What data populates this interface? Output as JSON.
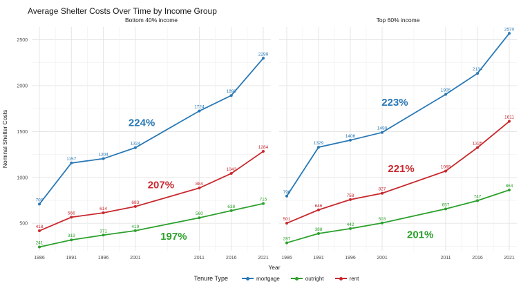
{
  "chart_data": {
    "type": "line",
    "title": "Average Shelter Costs Over Time by Income Group",
    "xlabel": "Year",
    "ylabel": "Nominal Shelter Costs",
    "x": [
      1986,
      1991,
      1996,
      2001,
      2011,
      2016,
      2021
    ],
    "yticks": [
      500,
      1000,
      1500,
      2000,
      2500
    ],
    "ylim": [
      200,
      2640
    ],
    "grid": true,
    "legend_position": "bottom",
    "legend_title": "Tenure Type",
    "colors": {
      "mortgage": "#2878b5",
      "outright": "#2ca02c",
      "rent": "#c8282d"
    },
    "facets": [
      {
        "label": "Bottom 40% income",
        "series": [
          {
            "name": "mortgage",
            "color": "#2878b5",
            "values": [
              709,
              1157,
              1204,
              1324,
              1724,
              1893,
              2299
            ]
          },
          {
            "name": "outright",
            "color": "#2ca02c",
            "values": [
              241,
              319,
              371,
              419,
              560,
              638,
              715
            ]
          },
          {
            "name": "rent",
            "color": "#c8282d",
            "values": [
              418,
              566,
              614,
              683,
              884,
              1043,
              1284
            ]
          }
        ],
        "annotations": [
          {
            "text": "224%",
            "x": 2002,
            "y": 1560,
            "color": "#2878b5"
          },
          {
            "text": "207%",
            "x": 2005,
            "y": 880,
            "color": "#c8282d"
          },
          {
            "text": "197%",
            "x": 2007,
            "y": 320,
            "color": "#2ca02c"
          }
        ]
      },
      {
        "label": "Top 60% income",
        "series": [
          {
            "name": "mortgage",
            "color": "#2878b5",
            "values": [
              796,
              1329,
              1406,
              1490,
              1905,
              2134,
              2570
            ]
          },
          {
            "name": "outright",
            "color": "#2ca02c",
            "values": [
              287,
              388,
              442,
              503,
              657,
              747,
              863
            ]
          },
          {
            "name": "rent",
            "color": "#c8282d",
            "values": [
              501,
              646,
              758,
              827,
              1069,
              1325,
              1611
            ]
          }
        ],
        "annotations": [
          {
            "text": "223%",
            "x": 2003,
            "y": 1780,
            "color": "#2878b5"
          },
          {
            "text": "221%",
            "x": 2004,
            "y": 1060,
            "color": "#c8282d"
          },
          {
            "text": "201%",
            "x": 2007,
            "y": 340,
            "color": "#2ca02c"
          }
        ]
      }
    ],
    "legend": [
      {
        "label": "mortgage",
        "color": "#2878b5"
      },
      {
        "label": "outright",
        "color": "#2ca02c"
      },
      {
        "label": "rent",
        "color": "#c8282d"
      }
    ]
  }
}
